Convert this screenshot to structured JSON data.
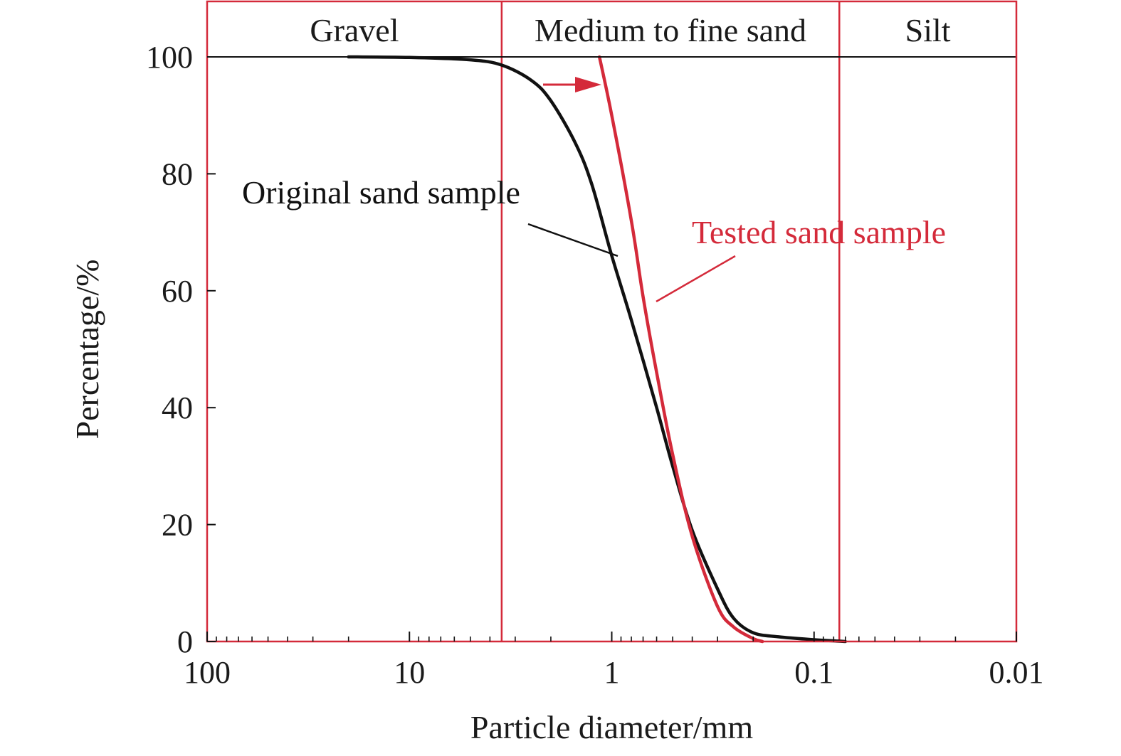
{
  "chart_data": {
    "type": "line",
    "xlabel": "Particle diameter/mm",
    "ylabel": "Percentage/%",
    "x_scale": "log",
    "x_reversed": true,
    "xlim": [
      100,
      0.01
    ],
    "ylim": [
      0,
      100
    ],
    "x_ticks": [
      {
        "value": 100,
        "label": "100"
      },
      {
        "value": 10,
        "label": "10"
      },
      {
        "value": 1,
        "label": "1"
      },
      {
        "value": 0.1,
        "label": "0.1"
      },
      {
        "value": 0.01,
        "label": "0.01"
      }
    ],
    "y_ticks": [
      {
        "value": 0,
        "label": "0"
      },
      {
        "value": 20,
        "label": "20"
      },
      {
        "value": 40,
        "label": "40"
      },
      {
        "value": 60,
        "label": "60"
      },
      {
        "value": 80,
        "label": "80"
      },
      {
        "value": 100,
        "label": "100"
      }
    ],
    "zone_boundaries": [
      3.5,
      0.075
    ],
    "zones": [
      {
        "label": "Gravel",
        "from": 100,
        "to": 3.5
      },
      {
        "label": "Medium to fine sand",
        "from": 3.5,
        "to": 0.075
      },
      {
        "label": "Silt",
        "from": 0.075,
        "to": 0.01
      }
    ],
    "grid": false,
    "series": [
      {
        "name": "Original sand sample",
        "color": "#111111",
        "points": [
          [
            20,
            100
          ],
          [
            10,
            99.9
          ],
          [
            5,
            99.5
          ],
          [
            3.5,
            98.6
          ],
          [
            2.5,
            96
          ],
          [
            2,
            92.5
          ],
          [
            1.5,
            85
          ],
          [
            1.25,
            78
          ],
          [
            1,
            66
          ],
          [
            0.8,
            55
          ],
          [
            0.6,
            40
          ],
          [
            0.5,
            30
          ],
          [
            0.4,
            19
          ],
          [
            0.3,
            9
          ],
          [
            0.25,
            4
          ],
          [
            0.2,
            1.5
          ],
          [
            0.15,
            0.8
          ],
          [
            0.1,
            0.3
          ],
          [
            0.07,
            0
          ]
        ]
      },
      {
        "name": "Tested sand sample",
        "color": "#d42a3a",
        "points": [
          [
            1.15,
            100
          ],
          [
            1,
            90
          ],
          [
            0.8,
            72
          ],
          [
            0.7,
            59
          ],
          [
            0.6,
            46
          ],
          [
            0.5,
            32
          ],
          [
            0.4,
            18
          ],
          [
            0.3,
            6
          ],
          [
            0.25,
            2.5
          ],
          [
            0.2,
            0.5
          ],
          [
            0.18,
            0
          ]
        ]
      }
    ],
    "arrow_color": "#d42a3a"
  }
}
